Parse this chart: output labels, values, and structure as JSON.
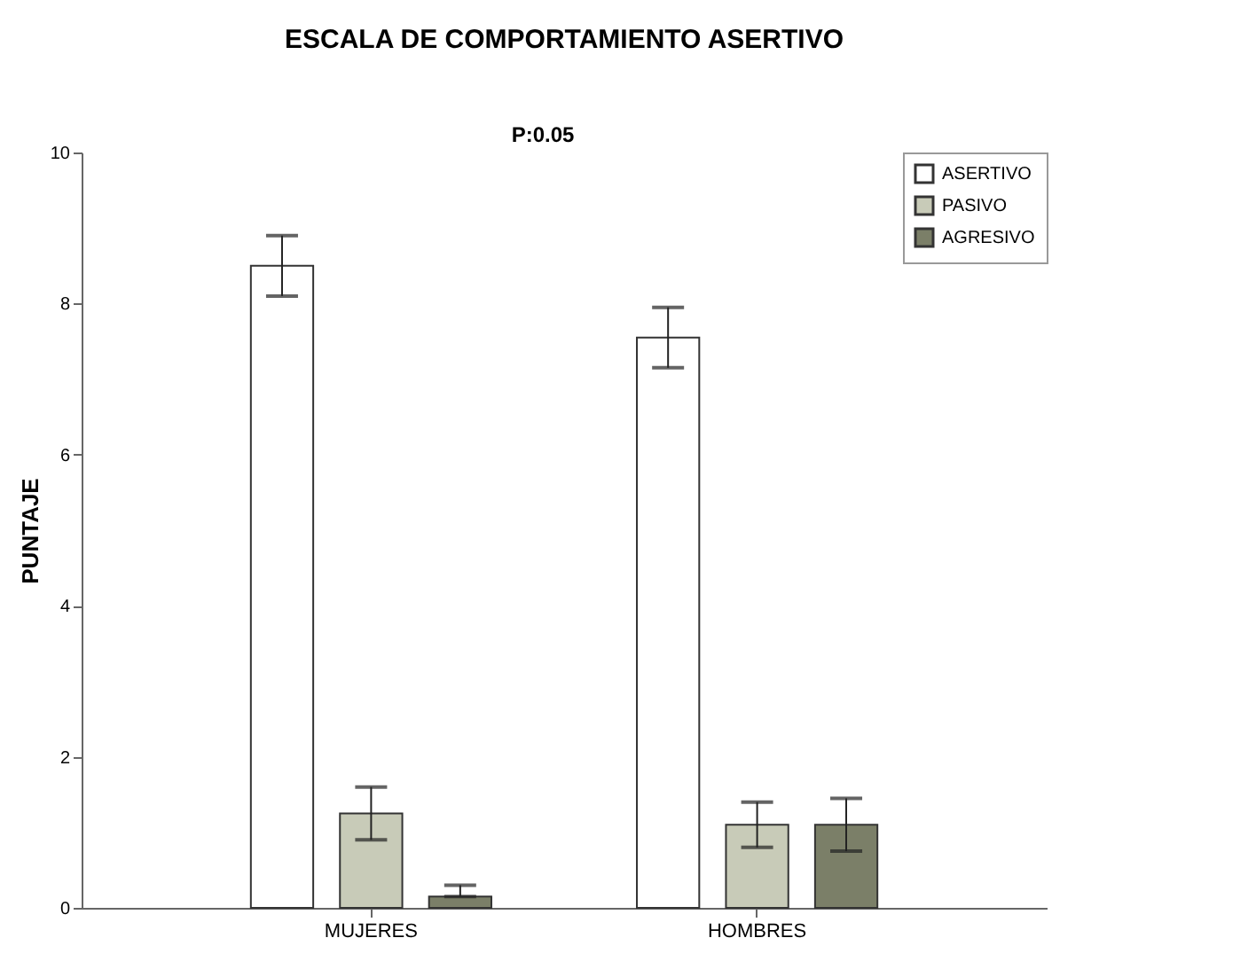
{
  "chart_data": {
    "type": "bar",
    "title": "ESCALA DE COMPORTAMIENTO ASERTIVO",
    "ylabel": "PUNTAJE",
    "categories": [
      "MUJERES",
      "HOMBRES"
    ],
    "series": [
      {
        "name": "ASERTIVO",
        "color": "#ffffff",
        "values": [
          8.5,
          7.55
        ],
        "errors": [
          0.4,
          0.4
        ]
      },
      {
        "name": "PASIVO",
        "color": "#c8cbb8",
        "values": [
          1.25,
          1.1
        ],
        "errors": [
          0.35,
          0.3
        ]
      },
      {
        "name": "AGRESIVO",
        "color": "#7b7f68",
        "values": [
          0.15,
          1.1
        ],
        "errors": [
          [
            0.15,
            0.3
          ],
          0.35
        ]
      }
    ],
    "ylim": [
      0,
      10
    ],
    "yticks": [
      0,
      2,
      4,
      6,
      8,
      10
    ],
    "grid": false,
    "legend": "top right",
    "annotations": [
      "P:0.05"
    ]
  }
}
